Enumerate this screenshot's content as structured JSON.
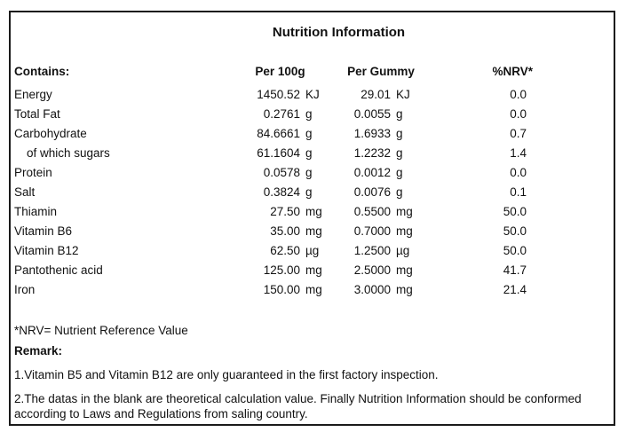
{
  "title": "Nutrition Information",
  "table": {
    "headers": {
      "contains": "Contains:",
      "per100g": "Per 100g",
      "per_gummy": "Per Gummy",
      "nrv": "%NRV*"
    },
    "rows": [
      {
        "name": "Energy",
        "indent": false,
        "per100g_value": "1450.52",
        "per100g_unit": "KJ",
        "per_gummy_value": "29.01",
        "per_gummy_unit": "KJ",
        "nrv": "0.0"
      },
      {
        "name": "Total Fat",
        "indent": false,
        "per100g_value": "0.2761",
        "per100g_unit": "g",
        "per_gummy_value": "0.0055",
        "per_gummy_unit": "g",
        "nrv": "0.0"
      },
      {
        "name": "Carbohydrate",
        "indent": false,
        "per100g_value": "84.6661",
        "per100g_unit": "g",
        "per_gummy_value": "1.6933",
        "per_gummy_unit": "g",
        "nrv": "0.7"
      },
      {
        "name": "of which sugars",
        "indent": true,
        "per100g_value": "61.1604",
        "per100g_unit": "g",
        "per_gummy_value": "1.2232",
        "per_gummy_unit": "g",
        "nrv": "1.4"
      },
      {
        "name": "Protein",
        "indent": false,
        "per100g_value": "0.0578",
        "per100g_unit": "g",
        "per_gummy_value": "0.0012",
        "per_gummy_unit": "g",
        "nrv": "0.0"
      },
      {
        "name": "Salt",
        "indent": false,
        "per100g_value": "0.3824",
        "per100g_unit": "g",
        "per_gummy_value": "0.0076",
        "per_gummy_unit": "g",
        "nrv": "0.1"
      },
      {
        "name": "Thiamin",
        "indent": false,
        "per100g_value": "27.50",
        "per100g_unit": "mg",
        "per_gummy_value": "0.5500",
        "per_gummy_unit": "mg",
        "nrv": "50.0"
      },
      {
        "name": "Vitamin B6",
        "indent": false,
        "per100g_value": "35.00",
        "per100g_unit": "mg",
        "per_gummy_value": "0.7000",
        "per_gummy_unit": "mg",
        "nrv": "50.0"
      },
      {
        "name": "Vitamin B12",
        "indent": false,
        "per100g_value": "62.50",
        "per100g_unit": "µg",
        "per_gummy_value": "1.2500",
        "per_gummy_unit": "µg",
        "nrv": "50.0"
      },
      {
        "name": "Pantothenic acid",
        "indent": false,
        "per100g_value": "125.00",
        "per100g_unit": "mg",
        "per_gummy_value": "2.5000",
        "per_gummy_unit": "mg",
        "nrv": "41.7"
      },
      {
        "name": "Iron",
        "indent": false,
        "per100g_value": "150.00",
        "per100g_unit": "mg",
        "per_gummy_value": "3.0000",
        "per_gummy_unit": "mg",
        "nrv": "21.4"
      }
    ]
  },
  "footer": {
    "nrv_note": "*NRV= Nutrient Reference Value",
    "remark_label": "Remark:",
    "notes": [
      "1.Vitamin B5 and Vitamin B12 are only guaranteed in the first factory inspection.",
      "2.The datas in the blank are theoretical calculation value. Finally Nutrition Information should be conformed according to Laws and Regulations from saling country."
    ]
  },
  "colors": {
    "border": "#1a1a1a",
    "text": "#111111",
    "background": "#ffffff"
  }
}
